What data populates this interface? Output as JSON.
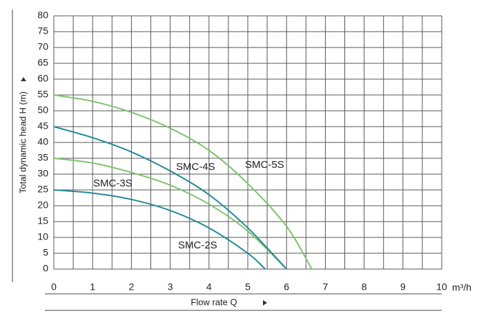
{
  "chart_data": {
    "type": "line",
    "xlabel": "Flow rate Q",
    "ylabel": "Total dynamic head H (m)",
    "x_unit": "m³/h",
    "xlim": [
      0,
      10
    ],
    "ylim": [
      0,
      80
    ],
    "xticks": [
      0,
      1,
      2,
      3,
      4,
      5,
      6,
      7,
      8,
      9,
      10
    ],
    "xminorticks": [
      0.5,
      1.5,
      2.5,
      3.5,
      4.5,
      5.5,
      6.5,
      7.5,
      8.5,
      9.5
    ],
    "yticks": [
      0,
      5,
      10,
      15,
      20,
      25,
      30,
      35,
      40,
      45,
      50,
      55,
      60,
      65,
      70,
      75,
      80
    ],
    "grid": true,
    "series": [
      {
        "name": "SMC-2S",
        "color": "#1f8a96",
        "x": [
          0,
          1,
          2,
          3,
          4,
          5,
          5.45
        ],
        "values": [
          25,
          24,
          22,
          18.5,
          13,
          5,
          0
        ]
      },
      {
        "name": "SMC-3S",
        "color": "#7dc36a",
        "x": [
          0,
          1,
          2,
          3,
          4,
          5,
          6
        ],
        "values": [
          35,
          33.5,
          30.5,
          26.5,
          20.5,
          12,
          0
        ]
      },
      {
        "name": "SMC-4S",
        "color": "#1f8a96",
        "x": [
          0,
          1,
          2,
          3,
          4,
          5,
          6
        ],
        "values": [
          45,
          41.5,
          37,
          31,
          23.5,
          13,
          0
        ]
      },
      {
        "name": "SMC-5S",
        "color": "#7dc36a",
        "x": [
          0,
          1,
          2,
          3,
          4,
          5,
          6,
          6.65
        ],
        "values": [
          55,
          53,
          49.5,
          44.5,
          37.5,
          27,
          13.5,
          0
        ]
      }
    ]
  }
}
